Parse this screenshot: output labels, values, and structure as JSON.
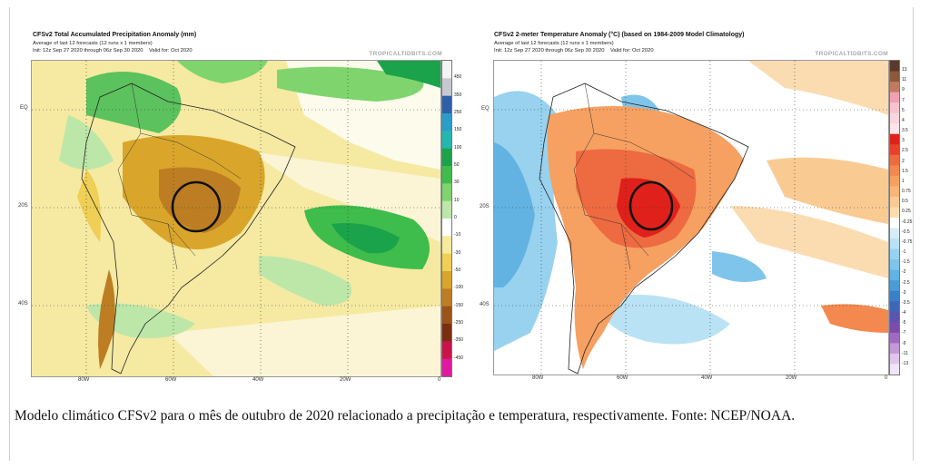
{
  "maps": [
    {
      "title": "CFSv2 Total Accumulated Precipitation Anomaly (mm)",
      "subtitle": "Average of last 12 forecasts (12 runs x 1 members)",
      "init_line": "Init: 12z Sep 27 2020 through 06z Sep 30 2020",
      "valid_line": "Valid for: Oct 2020",
      "watermark": "TROPICALTIDBITS.COM",
      "colorbar_labels": [
        "450",
        "350",
        "250",
        "150",
        "100",
        "50",
        "30",
        "10",
        "0",
        "-10",
        "-30",
        "-50",
        "-100",
        "-150",
        "-250",
        "-350",
        "-450"
      ],
      "colorbar_colors": [
        "#f4f4f4",
        "#c8c8d0",
        "#2f5fa8",
        "#2a9ec9",
        "#22b8b0",
        "#1aa34a",
        "#3ebd4c",
        "#7fd46e",
        "#bde7a9",
        "#ffffff",
        "#f6ea9c",
        "#efcf55",
        "#d9a62b",
        "#bd7e23",
        "#9c5318",
        "#7a2d10",
        "#c8144a",
        "#e01aa0"
      ],
      "lon_labels": [
        "80W",
        "60W",
        "40W",
        "20W",
        "0"
      ],
      "lat_labels": [
        "EQ",
        "20S",
        "40S"
      ]
    },
    {
      "title": "CFSv2 2-meter Temperature Anomaly (°C) (based on 1984-2009 Model Climatology)",
      "subtitle": "Average of last 12 forecasts (12 runs x 1 members)",
      "init_line": "Init: 12z Sep 27 2020 through 06z Sep 30 2020",
      "valid_line": "Valid for: Oct 2020",
      "watermark": "TROPICALTIDBITS.COM",
      "colorbar_labels": [
        "13",
        "11",
        "9",
        "7",
        "5",
        "4",
        "3.5",
        "3",
        "2.5",
        "2",
        "1.5",
        "1",
        "0.75",
        "0.5",
        "0.25",
        "-0.25",
        "-0.5",
        "-0.75",
        "-1",
        "-1.5",
        "-2",
        "-2.5",
        "-3",
        "-3.5",
        "-4",
        "-5",
        "-7",
        "-9",
        "-11",
        "-13"
      ],
      "colorbar_colors": [
        "#5a3a2a",
        "#8a5a3a",
        "#c07a60",
        "#f0a0b0",
        "#f6c4cf",
        "#f8d6de",
        "#fce4e8",
        "#e0201a",
        "#e8402a",
        "#ee6a40",
        "#f3894f",
        "#f6a061",
        "#f7b677",
        "#f9cb93",
        "#fbdcb1",
        "#ffffff",
        "#d6ecf7",
        "#b9e2f4",
        "#98d2ef",
        "#7fc4ea",
        "#62b3e2",
        "#4a9bd6",
        "#3980c7",
        "#3f67b8",
        "#5c55ad",
        "#7b4ca8",
        "#a06ac0",
        "#c49ad6",
        "#e0c6ea",
        "#f2e6f6"
      ],
      "lon_labels": [
        "80W",
        "60W",
        "40W",
        "20W",
        "0"
      ],
      "lat_labels": [
        "EQ",
        "20S",
        "40S"
      ]
    }
  ],
  "caption": "Modelo climático CFSv2 para o mês de outubro de 2020 relacionado a precipitação e temperatura, respectivamente. Fonte: NCEP/NOAA."
}
